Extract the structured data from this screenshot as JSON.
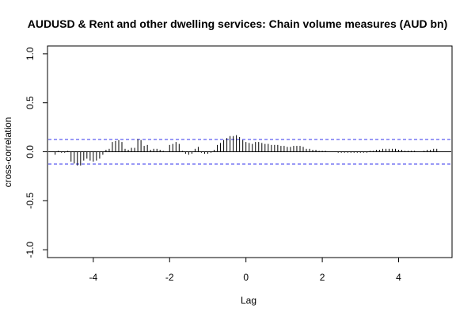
{
  "chart_data": {
    "type": "bar",
    "title": "AUDUSD & Rent and other dwelling services: Chain volume measures (AUD bn)",
    "xlabel": "Lag",
    "ylabel": "cross-correlation",
    "xlim": [
      -5.2,
      5.4
    ],
    "ylim": [
      -1.08,
      1.08
    ],
    "x_ticks": [
      -4,
      -2,
      0,
      2,
      4
    ],
    "y_ticks": [
      -1.0,
      -0.5,
      0.0,
      0.5,
      1.0
    ],
    "x_tick_labels": [
      "-4",
      "-2",
      "0",
      "2",
      "4"
    ],
    "y_tick_labels": [
      "-1.0",
      "-0.5",
      "0.0",
      "0.5",
      "1.0"
    ],
    "confidence_band": 0.125,
    "colors": {
      "bars": "#000000",
      "band": "#3333ee",
      "zero": "#000000"
    },
    "lags": [
      -5.0,
      -4.917,
      -4.833,
      -4.75,
      -4.667,
      -4.583,
      -4.5,
      -4.417,
      -4.333,
      -4.25,
      -4.167,
      -4.083,
      -4.0,
      -3.917,
      -3.833,
      -3.75,
      -3.667,
      -3.583,
      -3.5,
      -3.417,
      -3.333,
      -3.25,
      -3.167,
      -3.083,
      -3.0,
      -2.917,
      -2.833,
      -2.75,
      -2.667,
      -2.583,
      -2.5,
      -2.417,
      -2.333,
      -2.25,
      -2.167,
      -2.083,
      -2.0,
      -1.917,
      -1.833,
      -1.75,
      -1.667,
      -1.583,
      -1.5,
      -1.417,
      -1.333,
      -1.25,
      -1.167,
      -1.083,
      -1.0,
      -0.917,
      -0.833,
      -0.75,
      -0.667,
      -0.583,
      -0.5,
      -0.417,
      -0.333,
      -0.25,
      -0.167,
      -0.083,
      0.0,
      0.083,
      0.167,
      0.25,
      0.333,
      0.417,
      0.5,
      0.583,
      0.667,
      0.75,
      0.833,
      0.917,
      1.0,
      1.083,
      1.167,
      1.25,
      1.333,
      1.417,
      1.5,
      1.583,
      1.667,
      1.75,
      1.833,
      1.917,
      2.0,
      2.083,
      2.167,
      2.25,
      2.333,
      2.417,
      2.5,
      2.583,
      2.667,
      2.75,
      2.833,
      2.917,
      3.0,
      3.083,
      3.167,
      3.25,
      3.333,
      3.417,
      3.5,
      3.583,
      3.667,
      3.75,
      3.833,
      3.917,
      4.0,
      4.083,
      4.167,
      4.25,
      4.333,
      4.417,
      4.5,
      4.583,
      4.667,
      4.75,
      4.833,
      4.917,
      5.0
    ],
    "values": [
      -0.03,
      0.01,
      -0.01,
      -0.01,
      0.01,
      -0.1,
      -0.12,
      -0.14,
      -0.14,
      -0.09,
      -0.07,
      -0.09,
      -0.1,
      -0.09,
      -0.07,
      -0.03,
      0.02,
      0.03,
      0.1,
      0.11,
      0.12,
      0.1,
      0.03,
      0.02,
      0.04,
      0.04,
      0.13,
      0.12,
      0.06,
      0.07,
      0.02,
      0.03,
      0.03,
      0.02,
      0.01,
      0.0,
      0.07,
      0.08,
      0.1,
      0.08,
      0.01,
      -0.02,
      -0.03,
      -0.02,
      0.03,
      0.05,
      -0.01,
      -0.02,
      -0.02,
      -0.01,
      0.02,
      0.07,
      0.09,
      0.12,
      0.14,
      0.16,
      0.16,
      0.17,
      0.15,
      0.12,
      0.1,
      0.09,
      0.08,
      0.1,
      0.1,
      0.09,
      0.08,
      0.08,
      0.07,
      0.07,
      0.07,
      0.06,
      0.06,
      0.05,
      0.05,
      0.06,
      0.06,
      0.06,
      0.05,
      0.03,
      0.03,
      0.02,
      0.02,
      0.01,
      0.01,
      0.01,
      0.0,
      0.0,
      0.0,
      -0.01,
      -0.01,
      -0.01,
      -0.01,
      -0.01,
      -0.01,
      -0.01,
      -0.01,
      -0.01,
      -0.01,
      0.01,
      0.01,
      0.02,
      0.02,
      0.03,
      0.03,
      0.03,
      0.03,
      0.03,
      0.02,
      0.02,
      0.01,
      0.01,
      0.01,
      0.01,
      0.0,
      0.0,
      0.01,
      0.02,
      0.02,
      0.03,
      0.03
    ]
  }
}
